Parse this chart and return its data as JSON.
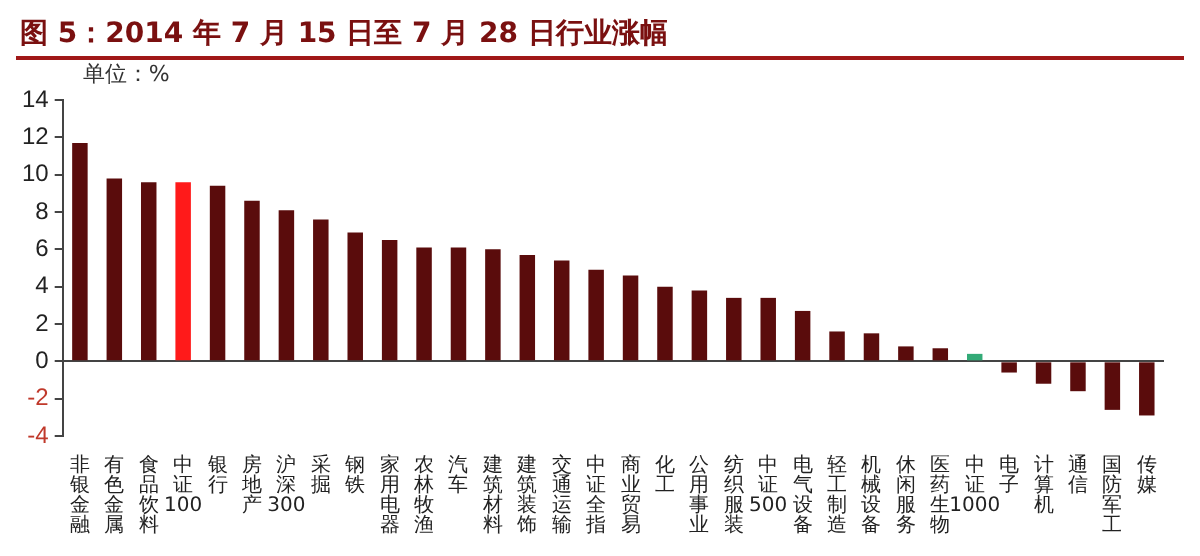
{
  "chart_data": {
    "type": "bar",
    "title": "图 5：2014 年 7 月 15 日至 7 月 28 日行业涨幅",
    "annotations": [
      "单位：%"
    ],
    "categories": [
      "非银金融",
      "有色金属",
      "食品饮料",
      "中证100",
      "银行",
      "房地产",
      "沪深300",
      "采掘",
      "钢铁",
      "家用电器",
      "农林牧渔",
      "汽车",
      "建筑材料",
      "建筑装饰",
      "交通运输",
      "中证全指",
      "商业贸易",
      "化工",
      "公用事业",
      "纺织服装",
      "中证500",
      "电气设备",
      "轻工制造",
      "机械设备",
      "休闲服务",
      "医药生物",
      "中证1000",
      "电子",
      "计算机",
      "通信",
      "国防军工",
      "传媒"
    ],
    "values": [
      11.7,
      9.8,
      9.6,
      9.6,
      9.4,
      8.6,
      8.1,
      7.6,
      6.9,
      6.5,
      6.1,
      6.1,
      6.0,
      5.7,
      5.4,
      4.9,
      4.6,
      4.0,
      3.8,
      3.4,
      3.4,
      2.7,
      1.6,
      1.5,
      0.8,
      0.7,
      0.4,
      -0.6,
      -1.2,
      -1.6,
      -2.6,
      -2.9
    ],
    "colors": [
      "#5a0c0c",
      "#5a0c0c",
      "#5a0c0c",
      "#ff1a1a",
      "#5a0c0c",
      "#5a0c0c",
      "#5a0c0c",
      "#5a0c0c",
      "#5a0c0c",
      "#5a0c0c",
      "#5a0c0c",
      "#5a0c0c",
      "#5a0c0c",
      "#5a0c0c",
      "#5a0c0c",
      "#5a0c0c",
      "#5a0c0c",
      "#5a0c0c",
      "#5a0c0c",
      "#5a0c0c",
      "#5a0c0c",
      "#5a0c0c",
      "#5a0c0c",
      "#5a0c0c",
      "#5a0c0c",
      "#5a0c0c",
      "#33aa77",
      "#5a0c0c",
      "#5a0c0c",
      "#5a0c0c",
      "#5a0c0c",
      "#5a0c0c"
    ],
    "ylim": [
      -4,
      14
    ],
    "yticks": [
      -4,
      -2,
      0,
      2,
      4,
      6,
      8,
      10,
      12,
      14
    ],
    "legend": false
  }
}
